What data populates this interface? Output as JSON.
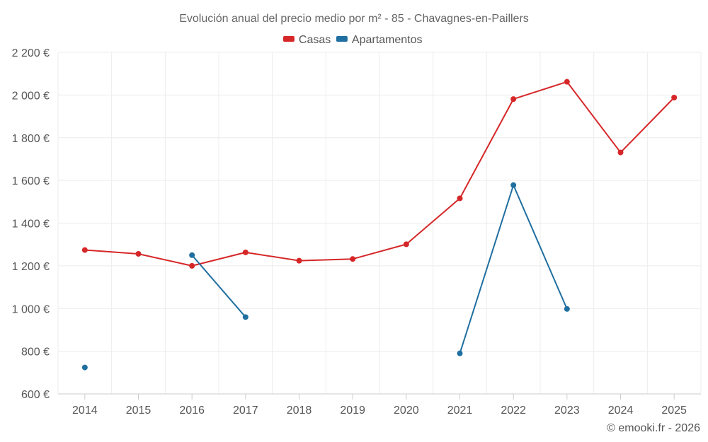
{
  "chart_data": {
    "type": "line",
    "title": "Evolución anual del precio medio por m² - 85 - Chavagnes-en-Paillers",
    "xlabel": "",
    "ylabel": "",
    "x": [
      "2014",
      "2015",
      "2016",
      "2017",
      "2018",
      "2019",
      "2020",
      "2021",
      "2022",
      "2023",
      "2024",
      "2025"
    ],
    "ylim": [
      600,
      2200
    ],
    "yticks": [
      600,
      800,
      1000,
      1200,
      1400,
      1600,
      1800,
      2000,
      2200
    ],
    "ytick_labels": [
      "600 €",
      "800 €",
      "1 000 €",
      "1 200 €",
      "1 400 €",
      "1 600 €",
      "1 800 €",
      "2 000 €",
      "2 200 €"
    ],
    "grid": true,
    "legend_position": "top-center",
    "series": [
      {
        "name": "Casas",
        "color": "#d62728",
        "values": [
          1274,
          1256,
          1200,
          1263,
          1224,
          1232,
          1301,
          1516,
          1981,
          2062,
          1731,
          1988
        ]
      },
      {
        "name": "Apartamentos",
        "color": "#1f6fa0",
        "values": [
          724,
          null,
          1250,
          960,
          null,
          null,
          null,
          790,
          1578,
          998,
          null,
          null
        ]
      }
    ]
  },
  "credit": "© emooki.fr - 2026"
}
